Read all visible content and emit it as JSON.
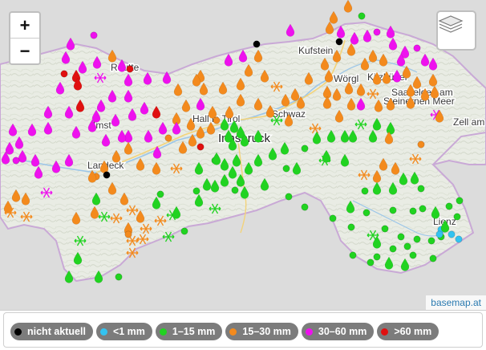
{
  "controls": {
    "zoom_in": "+",
    "zoom_out": "−",
    "layers_icon": "layers-icon"
  },
  "attribution": "basemap.at",
  "places": {
    "reutte": "Reutte",
    "kufstein": "Kufstein",
    "kitzbuehel": "Kitzbühel",
    "saalfelden": "Saalfelden am Steinernen Meer",
    "zell": "Zell am See",
    "hall": "Hall in Tirol",
    "schwaz": "Schwaz",
    "innsbruck": "Innsbruck",
    "imst": "Imst",
    "landeck": "Landeck",
    "lienz": "Lienz",
    "woergl": "Wörgl"
  },
  "legend": [
    {
      "label": "nicht aktuell",
      "color": "#000000"
    },
    {
      "label": "<1 mm",
      "color": "#33c3f0"
    },
    {
      "label": "1–15 mm",
      "color": "#21d321"
    },
    {
      "label": "15–30 mm",
      "color": "#f38a1d"
    },
    {
      "label": "30–60 mm",
      "color": "#ee11ee"
    },
    {
      "label": ">60 mm",
      "color": "#e01010"
    }
  ],
  "symbols": {
    "drop": "drop-icon",
    "snow": "snowflake-icon",
    "dot": "station-dot"
  }
}
